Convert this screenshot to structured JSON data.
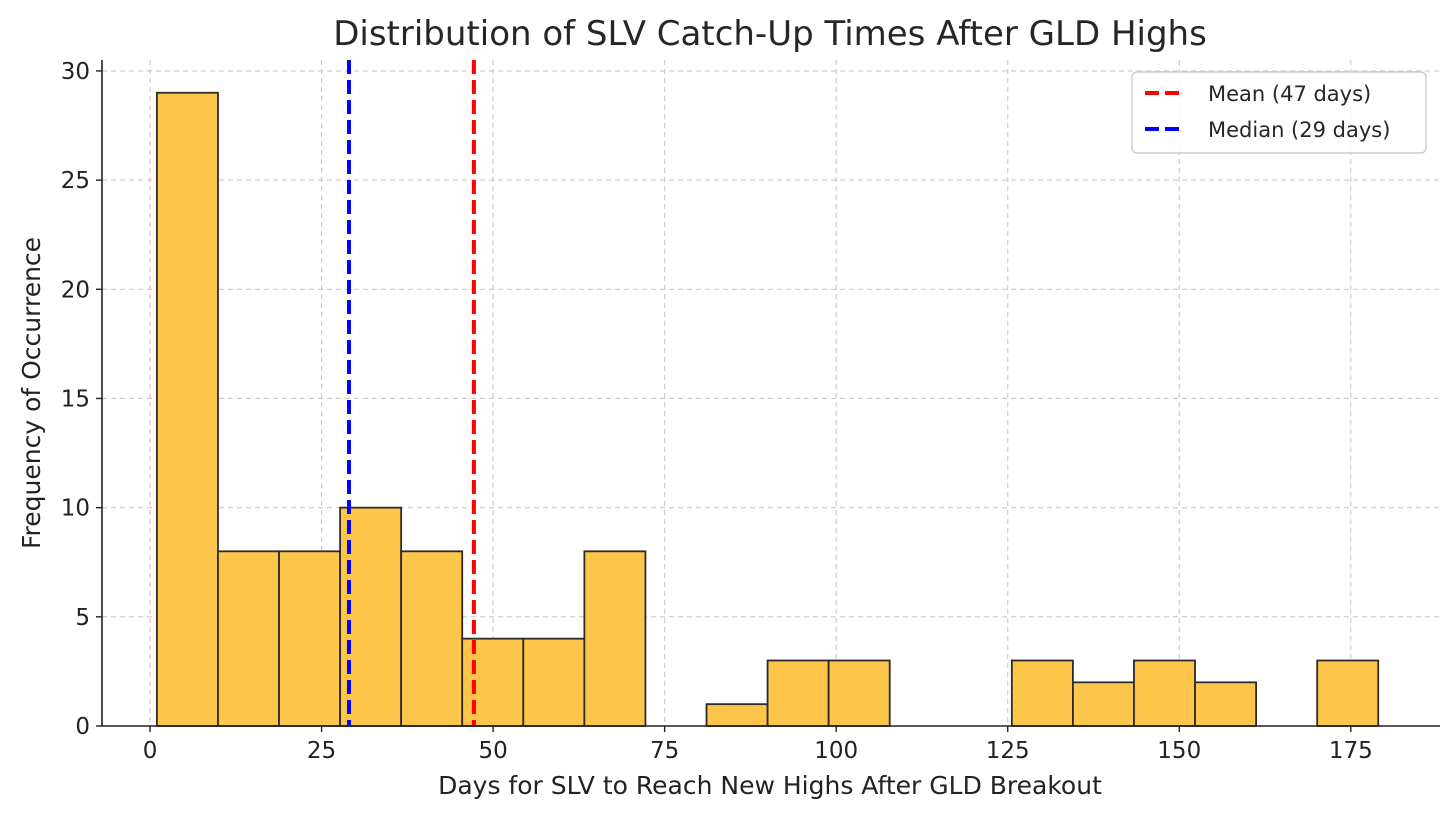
{
  "chart_data": {
    "type": "bar",
    "title": "Distribution of SLV Catch-Up Times After GLD Highs",
    "xlabel": "Days for SLV to Reach New Highs After GLD Breakout",
    "ylabel": "Frequency of Occurrence",
    "xlim": [
      -7,
      188
    ],
    "ylim": [
      0,
      30.5
    ],
    "grid": true,
    "legend_position": "top-right",
    "x_ticks": [
      0,
      25,
      50,
      75,
      100,
      125,
      150,
      175
    ],
    "x_tick_labels": [
      "0",
      "25",
      "50",
      "75",
      "100",
      "125",
      "150",
      "175"
    ],
    "y_ticks": [
      0,
      5,
      10,
      15,
      20,
      25,
      30
    ],
    "y_tick_labels": [
      "0",
      "5",
      "10",
      "15",
      "20",
      "25",
      "30"
    ],
    "bins": [
      {
        "start": 1.0,
        "end": 9.9,
        "count": 29
      },
      {
        "start": 9.9,
        "end": 18.8,
        "count": 8
      },
      {
        "start": 18.8,
        "end": 27.7,
        "count": 8
      },
      {
        "start": 27.7,
        "end": 36.6,
        "count": 10
      },
      {
        "start": 36.6,
        "end": 45.5,
        "count": 8
      },
      {
        "start": 45.5,
        "end": 54.4,
        "count": 4
      },
      {
        "start": 54.4,
        "end": 63.3,
        "count": 4
      },
      {
        "start": 63.3,
        "end": 72.2,
        "count": 8
      },
      {
        "start": 72.2,
        "end": 81.1,
        "count": 0
      },
      {
        "start": 81.1,
        "end": 90.0,
        "count": 1
      },
      {
        "start": 90.0,
        "end": 98.9,
        "count": 3
      },
      {
        "start": 98.9,
        "end": 107.8,
        "count": 3
      },
      {
        "start": 107.8,
        "end": 116.7,
        "count": 0
      },
      {
        "start": 116.7,
        "end": 125.6,
        "count": 0
      },
      {
        "start": 125.6,
        "end": 134.5,
        "count": 3
      },
      {
        "start": 134.5,
        "end": 143.4,
        "count": 2
      },
      {
        "start": 143.4,
        "end": 152.3,
        "count": 3
      },
      {
        "start": 152.3,
        "end": 161.2,
        "count": 2
      },
      {
        "start": 161.2,
        "end": 170.1,
        "count": 0
      },
      {
        "start": 170.1,
        "end": 179.0,
        "count": 3
      }
    ],
    "bar_color": "#fdc54a",
    "bar_edge_color": "#2b2b2b",
    "reference_lines": [
      {
        "name": "mean",
        "label": "Mean (47 days)",
        "x": 47.2,
        "color": "#ff0000"
      },
      {
        "name": "median",
        "label": "Median (29 days)",
        "x": 29.0,
        "color": "#0000ff"
      }
    ]
  }
}
